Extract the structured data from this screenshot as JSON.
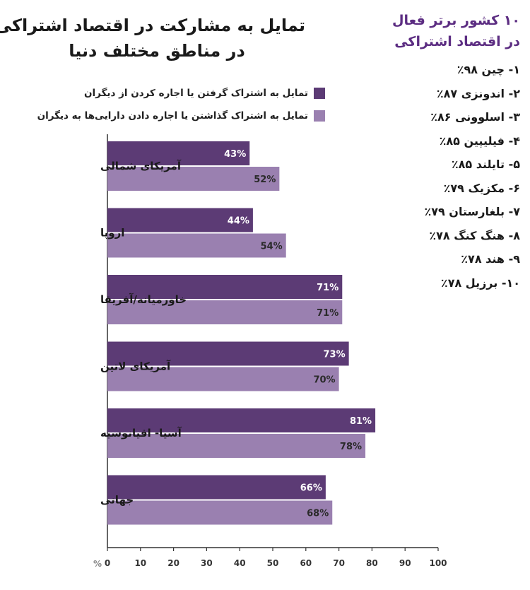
{
  "title_lines": [
    "تمایل به مشارکت در اقتصاد اشتراکی",
    "در مناطق مختلف دنیا"
  ],
  "panel": {
    "title_lines": [
      "۱۰ کشور برتر فعال",
      "در اقتصاد اشتراکی"
    ],
    "items": [
      "۱- چین ۹۸٪",
      "۲- اندونزی ۸۷٪",
      "۳- اسلوونی ۸۶٪",
      "۴- فیلیپین ۸۵٪",
      "۵- تایلند ۸۵٪",
      "۶- مکزیک ۷۹٪",
      "۷- بلغارستان ۷۹٪",
      "۸- هنگ کنگ ۷۸٪",
      "۹- هند ۷۸٪",
      "۱۰- برزیل ۷۸٪"
    ]
  },
  "colors": {
    "series1": "#5c3b75",
    "series2": "#9a80b0",
    "panel_title": "#5c2d82"
  },
  "chart_data": {
    "type": "bar",
    "orientation": "horizontal",
    "categories": [
      "آمریکای شمالی",
      "اروپا",
      "خاورمیانه/آفریقا",
      "آمریکای لاتین",
      "آسیا- اقیانوسیه",
      "جهانی"
    ],
    "series": [
      {
        "name": "تمایل به اشتراک گرفتن یا اجاره کردن از دیگران",
        "values": [
          43,
          44,
          71,
          73,
          81,
          66
        ],
        "labels": [
          "43%",
          "44%",
          "71%",
          "73%",
          "81%",
          "66%"
        ]
      },
      {
        "name": "تمایل به اشتراک گذاشتن یا اجاره دادن دارایی‌ها به دیگران",
        "values": [
          52,
          54,
          71,
          70,
          78,
          68
        ],
        "labels": [
          "52%",
          "54%",
          "71%",
          "70%",
          "78%",
          "68%"
        ]
      }
    ],
    "xlim": [
      0,
      100
    ],
    "xticks": [
      0,
      10,
      20,
      30,
      40,
      50,
      60,
      70,
      80,
      90,
      100
    ],
    "xunit": "%",
    "legend_position": "top"
  }
}
